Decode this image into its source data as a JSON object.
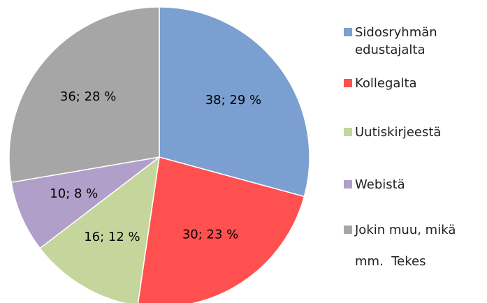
{
  "chart_data": {
    "type": "pie",
    "categories": [
      "Sidosryhmän edustajalta",
      "Kollegalta",
      "Uutiskirjeestä",
      "Webistä",
      "Jokin muu, mikä mm.  Tekes"
    ],
    "values": [
      38,
      30,
      16,
      10,
      36
    ],
    "value_labels": [
      "38; 29 %",
      "30; 23 %",
      "16; 12 %",
      "10; 8 %",
      "36; 28 %"
    ],
    "colors": [
      "#7b9fd0",
      "#ff5050",
      "#c4d69b",
      "#b0a0c9",
      "#a6a6a6"
    ],
    "legend": "right"
  }
}
